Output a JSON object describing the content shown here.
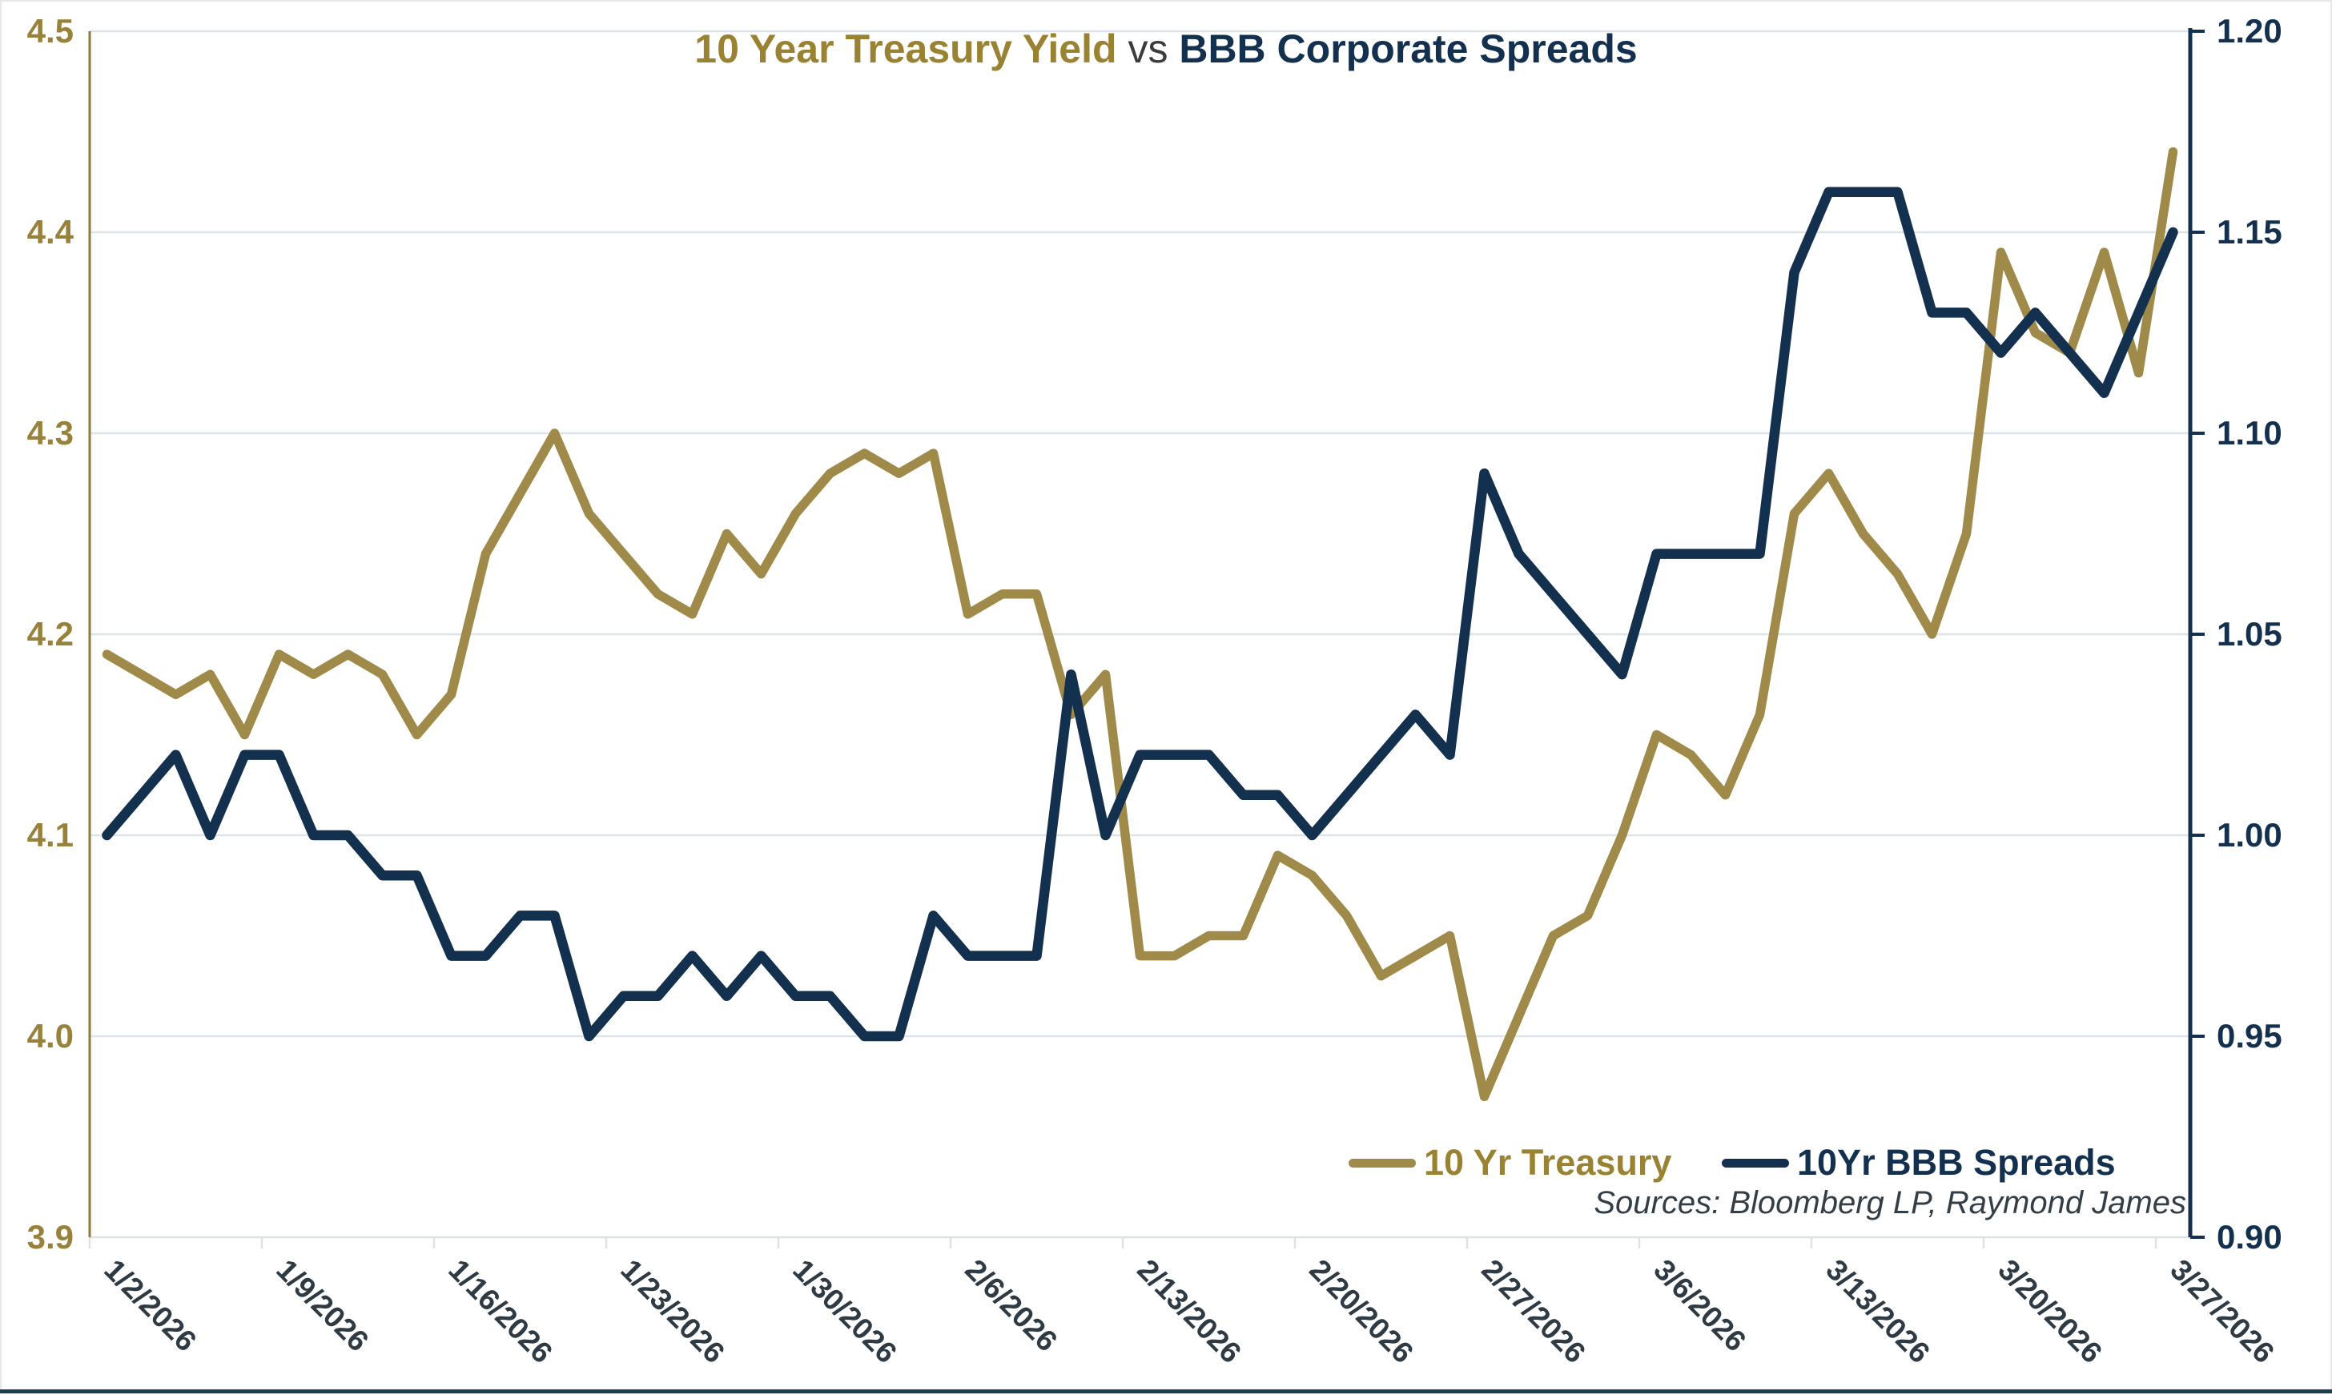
{
  "title": {
    "part_gold": "10 Year Treasury Yield",
    "part_vs": " vs ",
    "part_navy": "BBB Corporate Spreads"
  },
  "legend": {
    "treasury_label": "10 Yr Treasury",
    "spreads_label": "10Yr BBB Spreads"
  },
  "sources_text": "Sources: Bloomberg LP, Raymond James",
  "colors": {
    "gold_line": "#A08A49",
    "navy_line": "#13304E",
    "title_gold": "#9A8233",
    "title_navy": "#14304F",
    "title_vs_gray": "#3C3C3C",
    "left_axis_label": "#98823B",
    "right_axis_label": "#14304F",
    "date_label": "#2E3B44",
    "gridline": "#DEE3E8",
    "axis_line_gray": "#DDE2E6",
    "left_spine_gold": "#8F7B3C",
    "right_spine_navy": "#14304F",
    "sources_color": "#333E46",
    "bottom_border": "#1E3C50"
  },
  "chart_data": {
    "type": "line",
    "title": "10 Year Treasury Yield vs BBB Corporate Spreads",
    "grid": true,
    "legend_position": "bottom-right",
    "left_axis": {
      "min": 3.9,
      "max": 4.5,
      "ticks": [
        "4.5",
        "4.4",
        "4.3",
        "4.2",
        "4.1",
        "4.0",
        "3.9"
      ]
    },
    "right_axis": {
      "min": 0.9,
      "max": 1.2,
      "ticks": [
        "1.20",
        "1.15",
        "1.10",
        "1.05",
        "1.00",
        "0.95",
        "0.90"
      ]
    },
    "x_tick_labels": [
      "1/2/2026",
      "1/9/2026",
      "1/16/2026",
      "1/23/2026",
      "1/30/2026",
      "2/6/2026",
      "2/13/2026",
      "2/20/2026",
      "2/27/2026",
      "3/6/2026",
      "3/13/2026",
      "3/20/2026",
      "3/27/2026"
    ],
    "categories": [
      "1/2/2026",
      "1/5/2026",
      "1/6/2026",
      "1/7/2026",
      "1/8/2026",
      "1/9/2026",
      "1/12/2026",
      "1/13/2026",
      "1/14/2026",
      "1/15/2026",
      "1/16/2026",
      "1/19/2026",
      "1/20/2026",
      "1/21/2026",
      "1/22/2026",
      "1/23/2026",
      "1/26/2026",
      "1/27/2026",
      "1/28/2026",
      "1/29/2026",
      "1/30/2026",
      "2/2/2026",
      "2/3/2026",
      "2/4/2026",
      "2/5/2026",
      "2/6/2026",
      "2/9/2026",
      "2/10/2026",
      "2/11/2026",
      "2/12/2026",
      "2/13/2026",
      "2/16/2026",
      "2/17/2026",
      "2/18/2026",
      "2/19/2026",
      "2/20/2026",
      "2/23/2026",
      "2/24/2026",
      "2/25/2026",
      "2/26/2026",
      "2/27/2026",
      "3/2/2026",
      "3/3/2026",
      "3/4/2026",
      "3/5/2026",
      "3/6/2026",
      "3/9/2026",
      "3/10/2026",
      "3/11/2026",
      "3/12/2026",
      "3/13/2026",
      "3/16/2026",
      "3/17/2026",
      "3/18/2026",
      "3/19/2026",
      "3/20/2026",
      "3/23/2026",
      "3/24/2026",
      "3/25/2026",
      "3/26/2026",
      "3/27/2026"
    ],
    "series": [
      {
        "name": "10 Yr Treasury",
        "axis": "left",
        "color": "#A08A49",
        "values": [
          4.19,
          4.18,
          4.17,
          4.18,
          4.15,
          4.19,
          4.18,
          4.19,
          4.18,
          4.15,
          4.17,
          4.24,
          4.27,
          4.3,
          4.26,
          4.24,
          4.22,
          4.21,
          4.25,
          4.23,
          4.26,
          4.28,
          4.29,
          4.28,
          4.29,
          4.21,
          4.22,
          4.22,
          4.16,
          4.18,
          4.04,
          4.04,
          4.05,
          4.05,
          4.09,
          4.08,
          4.06,
          4.03,
          4.04,
          4.05,
          3.97,
          4.01,
          4.05,
          4.06,
          4.1,
          4.15,
          4.14,
          4.12,
          4.16,
          4.26,
          4.28,
          4.25,
          4.23,
          4.2,
          4.25,
          4.39,
          4.35,
          4.34,
          4.39,
          4.33,
          4.44
        ]
      },
      {
        "name": "10Yr BBB Spreads",
        "axis": "right",
        "color": "#13304E",
        "values": [
          1.0,
          1.01,
          1.02,
          1.0,
          1.02,
          1.02,
          1.0,
          1.0,
          0.99,
          0.99,
          0.97,
          0.97,
          0.98,
          0.98,
          0.95,
          0.96,
          0.96,
          0.97,
          0.96,
          0.97,
          0.96,
          0.96,
          0.95,
          0.95,
          0.98,
          0.97,
          0.97,
          0.97,
          1.04,
          1.0,
          1.02,
          1.02,
          1.02,
          1.01,
          1.01,
          1.0,
          1.01,
          1.02,
          1.03,
          1.02,
          1.09,
          1.07,
          1.06,
          1.05,
          1.04,
          1.07,
          1.07,
          1.07,
          1.07,
          1.14,
          1.16,
          1.16,
          1.16,
          1.13,
          1.13,
          1.12,
          1.13,
          1.12,
          1.11,
          1.13,
          1.15
        ]
      }
    ]
  }
}
